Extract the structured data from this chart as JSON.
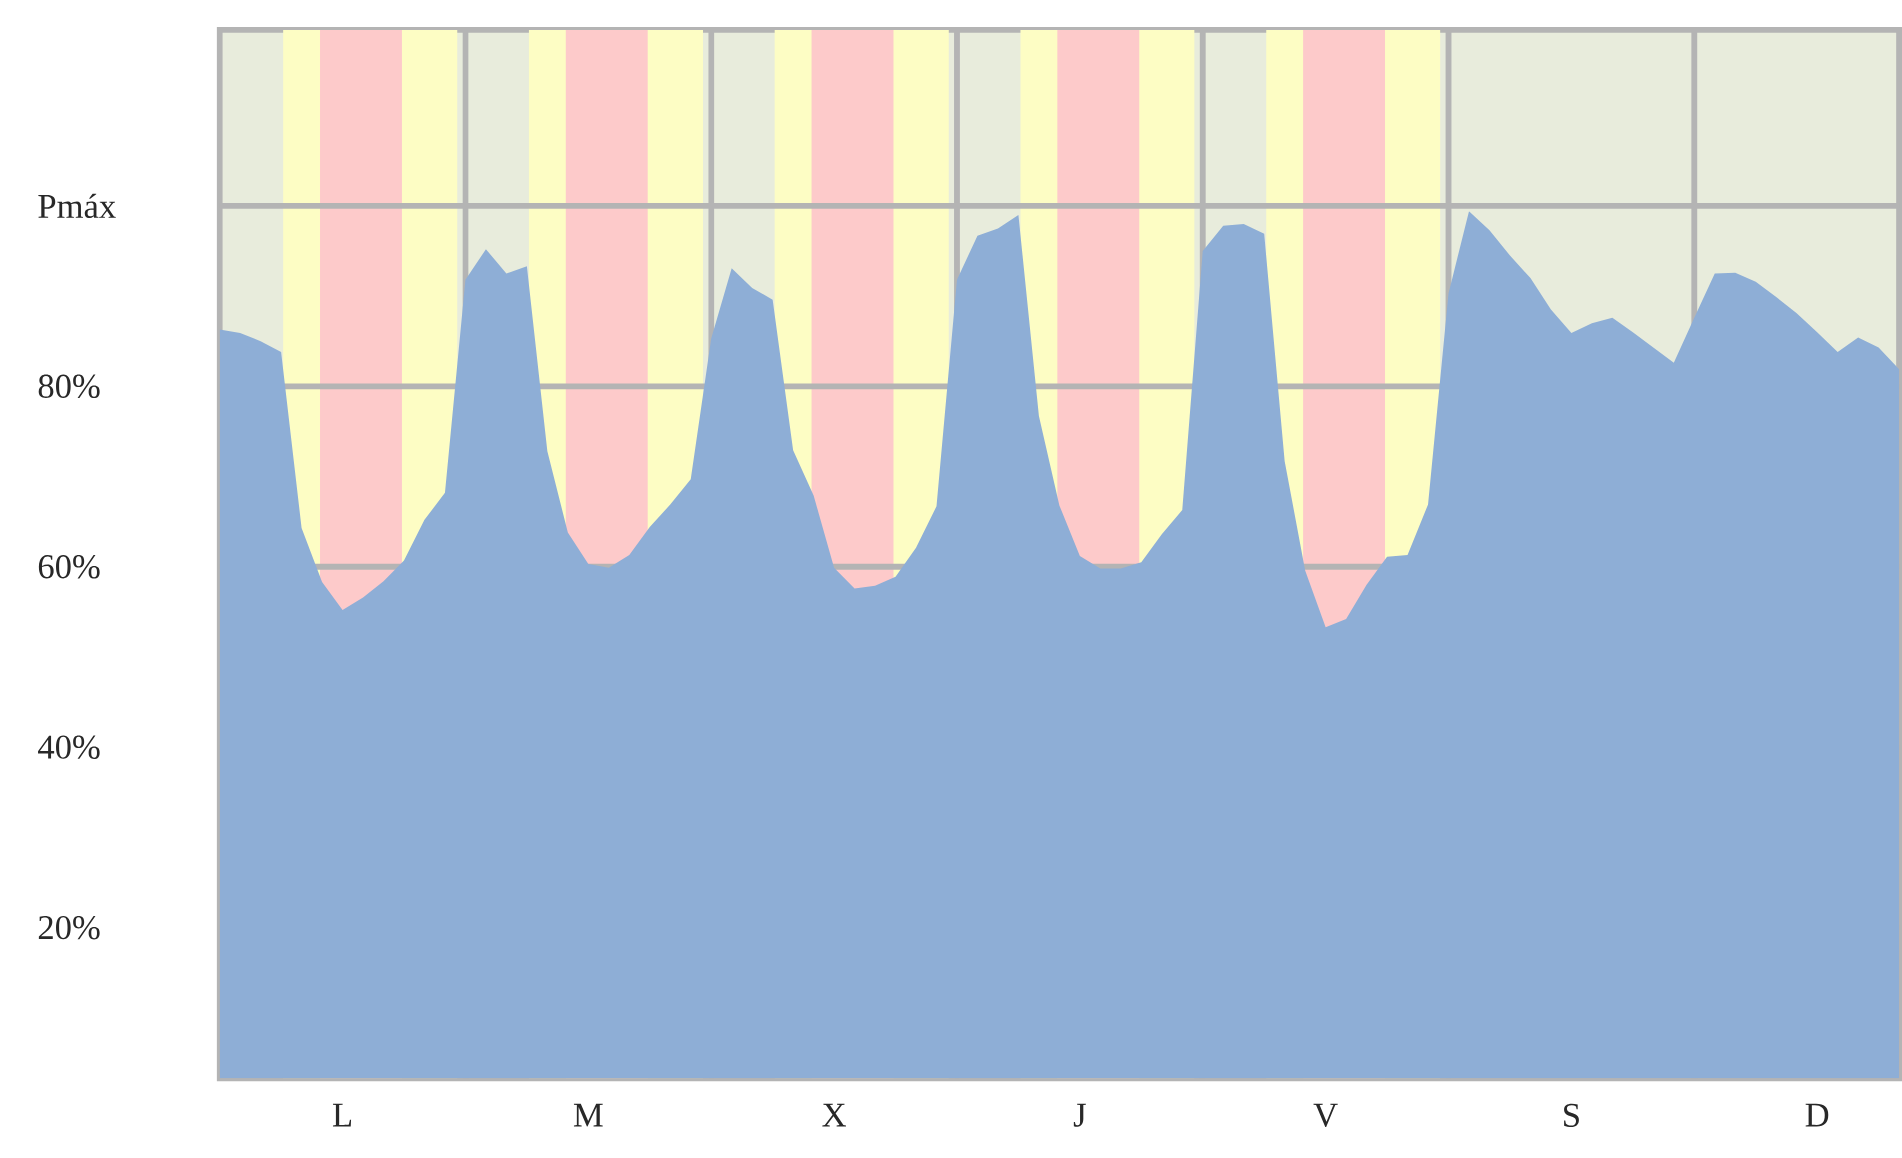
{
  "chart_data": {
    "type": "area",
    "color": "#8eaed6",
    "categories": [
      null,
      null,
      null,
      null,
      null,
      null,
      "L",
      null,
      null,
      null,
      null,
      null,
      null,
      null,
      null,
      null,
      null,
      null,
      "M",
      null,
      null,
      null,
      null,
      null,
      null,
      null,
      null,
      null,
      null,
      null,
      "X",
      null,
      null,
      null,
      null,
      null,
      null,
      null,
      null,
      null,
      null,
      null,
      "J",
      null,
      null,
      null,
      null,
      null,
      null,
      null,
      null,
      null,
      null,
      null,
      "V",
      null,
      null,
      null,
      null,
      null,
      null,
      null,
      null,
      null,
      null,
      null,
      "S",
      null,
      null,
      null,
      null,
      null,
      null,
      null,
      null,
      null,
      null,
      null,
      "D",
      null,
      null,
      null,
      null
    ],
    "values": [
      86.3,
      85.9,
      85.0,
      83.8,
      64.3,
      58.3,
      55.2,
      56.6,
      58.4,
      60.7,
      65.2,
      68.2,
      91.8,
      95.2,
      92.5,
      93.3,
      72.8,
      63.8,
      60.3,
      59.9,
      61.3,
      64.4,
      66.9,
      69.7,
      85.3,
      93.1,
      90.9,
      89.6,
      72.9,
      67.9,
      59.9,
      57.6,
      57.9,
      58.9,
      62.1,
      66.7,
      91.8,
      96.7,
      97.5,
      99.0,
      76.7,
      66.8,
      61.2,
      59.8,
      59.8,
      60.5,
      63.6,
      66.3,
      95.0,
      97.8,
      98.0,
      96.9,
      71.7,
      59.6,
      53.3,
      54.2,
      58.0,
      61.1,
      61.3,
      66.9,
      90.3,
      99.4,
      97.3,
      94.5,
      92.0,
      88.5,
      85.9,
      87.0,
      87.6,
      86.0,
      84.3,
      82.6,
      87.6,
      92.5,
      92.6,
      91.6,
      89.9,
      88.1,
      86.0,
      83.8,
      85.4,
      84.3,
      81.9
    ],
    "ylim": [
      3.3,
      119.5
    ],
    "yticks": [
      {
        "value": 20,
        "label": "20%"
      },
      {
        "value": 40,
        "label": "40%"
      },
      {
        "value": 60,
        "label": "60%"
      },
      {
        "value": 80,
        "label": "80%"
      },
      {
        "value": 100,
        "label": "Pmáx"
      }
    ],
    "grid": "y"
  }
}
